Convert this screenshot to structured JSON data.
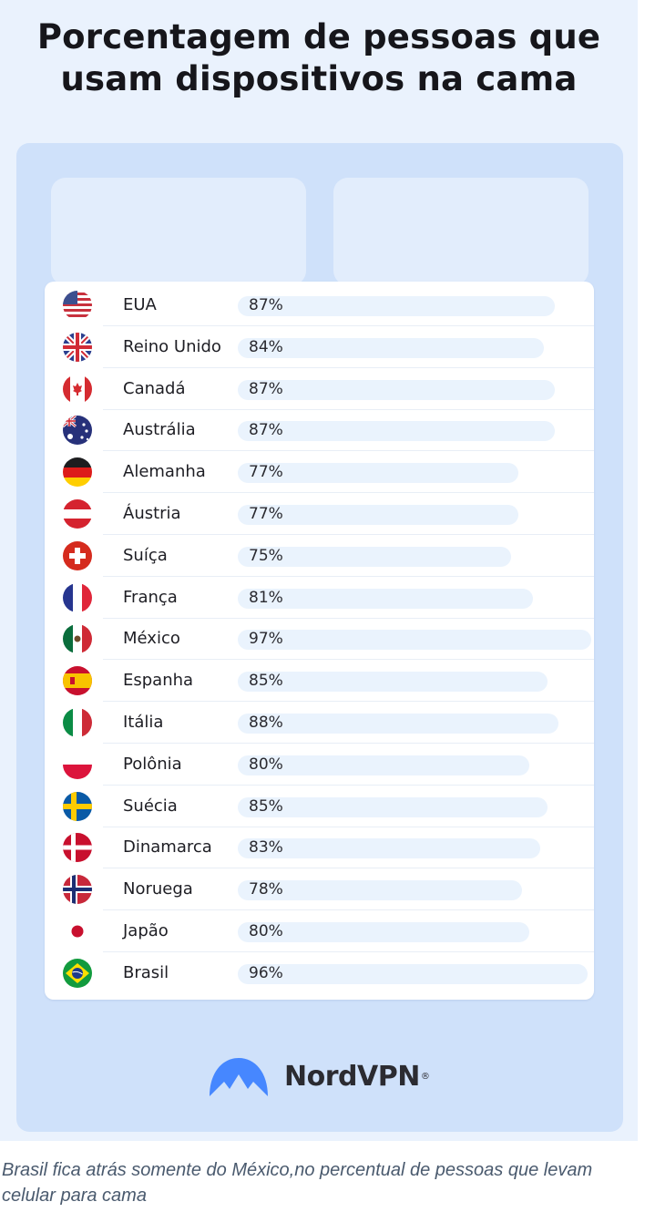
{
  "title_line1": "Porcentagem de pessoas que",
  "title_line2": "usam dispositivos na cama",
  "brand": "NordVPN",
  "brand_mark": "®",
  "caption": "Brasil fica atrás somente do México,no percentual de pessoas que levam celular para cama",
  "colors": {
    "background": "#eaf2fd",
    "panel": "#cfe1fa",
    "bar_track": "#eaf3fd",
    "logo": "#4687ff"
  },
  "chart_data": {
    "type": "table",
    "title": "Porcentagem de pessoas que usam dispositivos na cama",
    "unit": "%",
    "rows": [
      {
        "country": "EUA",
        "label": "87%",
        "value": 87,
        "flag": "usa-flag-icon"
      },
      {
        "country": "Reino Unido",
        "label": "84%",
        "value": 84,
        "flag": "uk-flag-icon"
      },
      {
        "country": "Canadá",
        "label": "87%",
        "value": 87,
        "flag": "canada-flag-icon"
      },
      {
        "country": "Austrália",
        "label": "87%",
        "value": 87,
        "flag": "australia-flag-icon"
      },
      {
        "country": "Alemanha",
        "label": "77%",
        "value": 77,
        "flag": "germany-flag-icon"
      },
      {
        "country": "Áustria",
        "label": "77%",
        "value": 77,
        "flag": "austria-flag-icon"
      },
      {
        "country": "Suíça",
        "label": "75%",
        "value": 75,
        "flag": "switzerland-flag-icon"
      },
      {
        "country": "França",
        "label": "81%",
        "value": 81,
        "flag": "france-flag-icon"
      },
      {
        "country": "México",
        "label": "97%",
        "value": 97,
        "flag": "mexico-flag-icon"
      },
      {
        "country": "Espanha",
        "label": "85%",
        "value": 85,
        "flag": "spain-flag-icon"
      },
      {
        "country": "Itália",
        "label": "88%",
        "value": 88,
        "flag": "italy-flag-icon"
      },
      {
        "country": "Polônia",
        "label": "80%",
        "value": 80,
        "flag": "poland-flag-icon"
      },
      {
        "country": "Suécia",
        "label": "85%",
        "value": 85,
        "flag": "sweden-flag-icon"
      },
      {
        "country": "Dinamarca",
        "label": "83%",
        "value": 83,
        "flag": "denmark-flag-icon"
      },
      {
        "country": "Noruega",
        "label": "78%",
        "value": 78,
        "flag": "norway-flag-icon"
      },
      {
        "country": "Japão",
        "label": "80%",
        "value": 80,
        "flag": "japan-flag-icon"
      },
      {
        "country": "Brasil",
        "label": "96%",
        "value": 96,
        "flag": "brazil-flag-icon"
      }
    ]
  }
}
